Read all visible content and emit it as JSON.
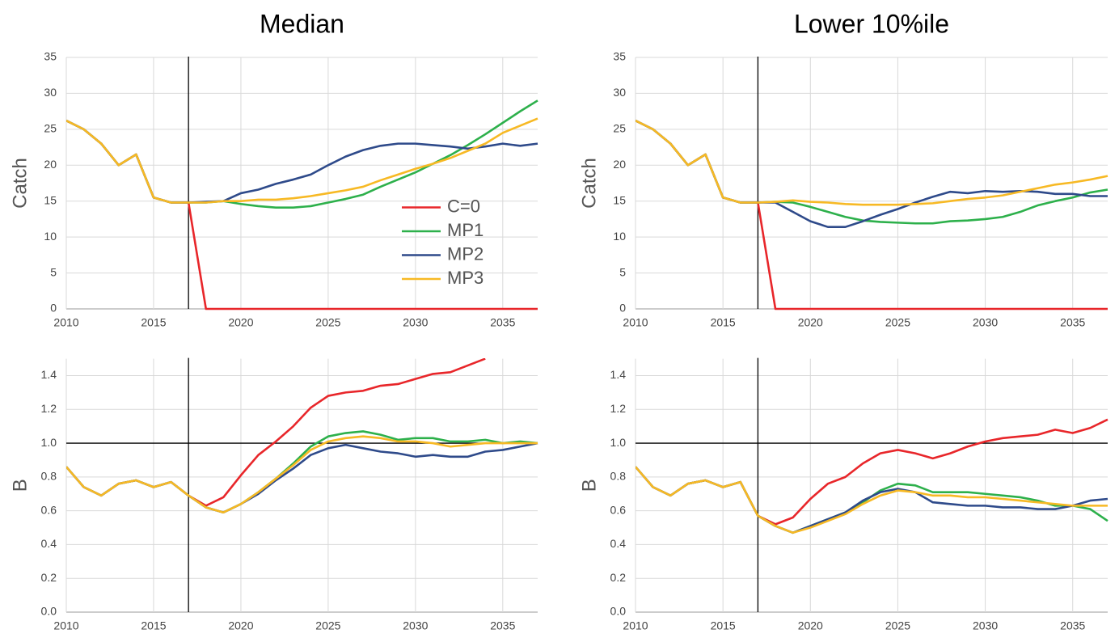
{
  "chart_data": [
    {
      "type": "line",
      "title": "Median",
      "ylabel": "Catch",
      "x": [
        2010,
        2011,
        2012,
        2013,
        2014,
        2015,
        2016,
        2017,
        2018,
        2019,
        2020,
        2021,
        2022,
        2023,
        2024,
        2025,
        2026,
        2027,
        2028,
        2029,
        2030,
        2031,
        2032,
        2033,
        2034,
        2035,
        2036,
        2037
      ],
      "xlim": [
        2010,
        2037
      ],
      "xticks": [
        2010,
        2015,
        2020,
        2025,
        2030,
        2035
      ],
      "ylim": [
        0,
        35
      ],
      "yticks": [
        0,
        5,
        10,
        15,
        20,
        25,
        30,
        35
      ],
      "grid": true,
      "vlines": [
        2017
      ],
      "legend": "center-right",
      "series": [
        {
          "name": "C=0",
          "color": "#e8262a",
          "values": [
            26.2,
            25,
            23,
            20,
            21.5,
            15.5,
            14.8,
            14.8,
            0,
            0,
            0,
            0,
            0,
            0,
            0,
            0,
            0,
            0,
            0,
            0,
            0,
            0,
            0,
            0,
            0,
            0,
            0,
            0
          ]
        },
        {
          "name": "MP1",
          "color": "#2db04b",
          "values": [
            26.2,
            25,
            23,
            20,
            21.5,
            15.5,
            14.8,
            14.8,
            14.8,
            15,
            14.6,
            14.3,
            14.1,
            14.1,
            14.3,
            14.8,
            15.3,
            15.9,
            17,
            18,
            19,
            20.2,
            21.4,
            22.8,
            24.3,
            25.9,
            27.5,
            29
          ]
        },
        {
          "name": "MP2",
          "color": "#2e4a8a",
          "values": [
            26.2,
            25,
            23,
            20,
            21.5,
            15.5,
            14.8,
            14.8,
            14.9,
            15,
            16.1,
            16.6,
            17.4,
            18,
            18.7,
            20,
            21.2,
            22.1,
            22.7,
            23,
            23,
            22.8,
            22.6,
            22.3,
            22.6,
            23,
            22.7,
            23
          ]
        },
        {
          "name": "MP3",
          "color": "#f7b924",
          "values": [
            26.2,
            25,
            23,
            20,
            21.5,
            15.5,
            14.8,
            14.8,
            14.8,
            15,
            15,
            15.2,
            15.2,
            15.4,
            15.7,
            16.1,
            16.5,
            17,
            17.9,
            18.7,
            19.5,
            20.2,
            21,
            22,
            23,
            24.5,
            25.5,
            26.5
          ]
        }
      ]
    },
    {
      "type": "line",
      "title": "Lower 10%ile",
      "ylabel": "Catch",
      "x": [
        2010,
        2011,
        2012,
        2013,
        2014,
        2015,
        2016,
        2017,
        2018,
        2019,
        2020,
        2021,
        2022,
        2023,
        2024,
        2025,
        2026,
        2027,
        2028,
        2029,
        2030,
        2031,
        2032,
        2033,
        2034,
        2035,
        2036,
        2037
      ],
      "xlim": [
        2010,
        2037
      ],
      "xticks": [
        2010,
        2015,
        2020,
        2025,
        2030,
        2035
      ],
      "ylim": [
        0,
        35
      ],
      "yticks": [
        0,
        5,
        10,
        15,
        20,
        25,
        30,
        35
      ],
      "grid": true,
      "vlines": [
        2017
      ],
      "series": [
        {
          "color": "#e8262a",
          "values": [
            26.2,
            25,
            23,
            20,
            21.5,
            15.5,
            14.8,
            14.8,
            0,
            0,
            0,
            0,
            0,
            0,
            0,
            0,
            0,
            0,
            0,
            0,
            0,
            0,
            0,
            0,
            0,
            0,
            0,
            0
          ]
        },
        {
          "color": "#2db04b",
          "values": [
            26.2,
            25,
            23,
            20,
            21.5,
            15.5,
            14.8,
            14.8,
            14.9,
            14.8,
            14.2,
            13.5,
            12.8,
            12.3,
            12.1,
            12,
            11.9,
            11.9,
            12.2,
            12.3,
            12.5,
            12.8,
            13.5,
            14.4,
            15,
            15.5,
            16.2,
            16.6
          ]
        },
        {
          "color": "#2e4a8a",
          "values": [
            26.2,
            25,
            23,
            20,
            21.5,
            15.5,
            14.8,
            14.8,
            14.8,
            13.5,
            12.2,
            11.4,
            11.4,
            12.2,
            13.1,
            13.9,
            14.8,
            15.6,
            16.3,
            16.1,
            16.4,
            16.3,
            16.4,
            16.3,
            16,
            16,
            15.7,
            15.7
          ]
        },
        {
          "color": "#f7b924",
          "values": [
            26.2,
            25,
            23,
            20,
            21.5,
            15.5,
            14.8,
            14.8,
            14.9,
            15.1,
            14.9,
            14.8,
            14.6,
            14.5,
            14.5,
            14.5,
            14.6,
            14.7,
            15,
            15.3,
            15.5,
            15.8,
            16.3,
            16.8,
            17.3,
            17.6,
            18,
            18.5
          ]
        }
      ]
    },
    {
      "type": "line",
      "ylabel": "B",
      "x": [
        2010,
        2011,
        2012,
        2013,
        2014,
        2015,
        2016,
        2017,
        2018,
        2019,
        2020,
        2021,
        2022,
        2023,
        2024,
        2025,
        2026,
        2027,
        2028,
        2029,
        2030,
        2031,
        2032,
        2033,
        2034,
        2035,
        2036,
        2037
      ],
      "xlim": [
        2010,
        2037
      ],
      "xticks": [
        2010,
        2015,
        2020,
        2025,
        2030,
        2035
      ],
      "ylim": [
        0,
        1.5
      ],
      "yticks": [
        {
          "value": 0,
          "label": "0.0"
        },
        0.2,
        0.4,
        0.6,
        0.8,
        {
          "value": 1,
          "label": "1.0"
        },
        1.2,
        1.4
      ],
      "grid": true,
      "vlines": [
        2017
      ],
      "hlines": [
        1
      ],
      "series": [
        {
          "color": "#e8262a",
          "values": [
            0.86,
            0.74,
            0.69,
            0.76,
            0.78,
            0.74,
            0.77,
            0.69,
            0.63,
            0.68,
            0.81,
            0.93,
            1.01,
            1.1,
            1.21,
            1.28,
            1.3,
            1.31,
            1.34,
            1.35,
            1.38,
            1.41,
            1.42,
            1.46,
            1.5,
            null,
            null,
            null
          ]
        },
        {
          "color": "#2db04b",
          "values": [
            0.86,
            0.74,
            0.69,
            0.76,
            0.78,
            0.74,
            0.77,
            0.69,
            0.62,
            0.59,
            0.64,
            0.71,
            0.79,
            0.88,
            0.98,
            1.04,
            1.06,
            1.07,
            1.05,
            1.02,
            1.03,
            1.03,
            1.01,
            1.01,
            1.02,
            1,
            1.01,
            1
          ]
        },
        {
          "color": "#2e4a8a",
          "values": [
            0.86,
            0.74,
            0.69,
            0.76,
            0.78,
            0.74,
            0.77,
            0.69,
            0.62,
            0.59,
            0.64,
            0.7,
            0.78,
            0.85,
            0.93,
            0.97,
            0.99,
            0.97,
            0.95,
            0.94,
            0.92,
            0.93,
            0.92,
            0.92,
            0.95,
            0.96,
            0.98,
            1
          ]
        },
        {
          "color": "#f7b924",
          "values": [
            0.86,
            0.74,
            0.69,
            0.76,
            0.78,
            0.74,
            0.77,
            0.69,
            0.62,
            0.59,
            0.64,
            0.71,
            0.79,
            0.87,
            0.96,
            1.01,
            1.03,
            1.04,
            1.03,
            1.01,
            1.01,
            1,
            0.98,
            0.99,
            1,
            1,
            1,
            1
          ]
        }
      ]
    },
    {
      "type": "line",
      "ylabel": "B",
      "x": [
        2010,
        2011,
        2012,
        2013,
        2014,
        2015,
        2016,
        2017,
        2018,
        2019,
        2020,
        2021,
        2022,
        2023,
        2024,
        2025,
        2026,
        2027,
        2028,
        2029,
        2030,
        2031,
        2032,
        2033,
        2034,
        2035,
        2036,
        2037
      ],
      "xlim": [
        2010,
        2037
      ],
      "xticks": [
        2010,
        2015,
        2020,
        2025,
        2030,
        2035
      ],
      "ylim": [
        0,
        1.5
      ],
      "yticks": [
        {
          "value": 0,
          "label": "0.0"
        },
        0.2,
        0.4,
        0.6,
        0.8,
        {
          "value": 1,
          "label": "1.0"
        },
        1.2,
        1.4
      ],
      "grid": true,
      "vlines": [
        2017
      ],
      "hlines": [
        1
      ],
      "series": [
        {
          "color": "#e8262a",
          "values": [
            0.86,
            0.74,
            0.69,
            0.76,
            0.78,
            0.74,
            0.77,
            0.57,
            0.52,
            0.56,
            0.67,
            0.76,
            0.8,
            0.88,
            0.94,
            0.96,
            0.94,
            0.91,
            0.94,
            0.98,
            1.01,
            1.03,
            1.04,
            1.05,
            1.08,
            1.06,
            1.09,
            1.14
          ]
        },
        {
          "color": "#2db04b",
          "values": [
            0.86,
            0.74,
            0.69,
            0.76,
            0.78,
            0.74,
            0.77,
            0.57,
            0.51,
            0.47,
            0.51,
            0.55,
            0.59,
            0.65,
            0.72,
            0.76,
            0.75,
            0.71,
            0.71,
            0.71,
            0.7,
            0.69,
            0.68,
            0.66,
            0.63,
            0.63,
            0.61,
            0.54
          ]
        },
        {
          "color": "#2e4a8a",
          "values": [
            0.86,
            0.74,
            0.69,
            0.76,
            0.78,
            0.74,
            0.77,
            0.57,
            0.51,
            0.47,
            0.51,
            0.55,
            0.59,
            0.66,
            0.71,
            0.73,
            0.71,
            0.65,
            0.64,
            0.63,
            0.63,
            0.62,
            0.62,
            0.61,
            0.61,
            0.63,
            0.66,
            0.67
          ]
        },
        {
          "color": "#f7b924",
          "values": [
            0.86,
            0.74,
            0.69,
            0.76,
            0.78,
            0.74,
            0.77,
            0.57,
            0.51,
            0.47,
            0.5,
            0.54,
            0.58,
            0.64,
            0.69,
            0.72,
            0.71,
            0.69,
            0.69,
            0.68,
            0.68,
            0.67,
            0.66,
            0.65,
            0.64,
            0.63,
            0.63,
            0.63
          ]
        }
      ]
    }
  ]
}
